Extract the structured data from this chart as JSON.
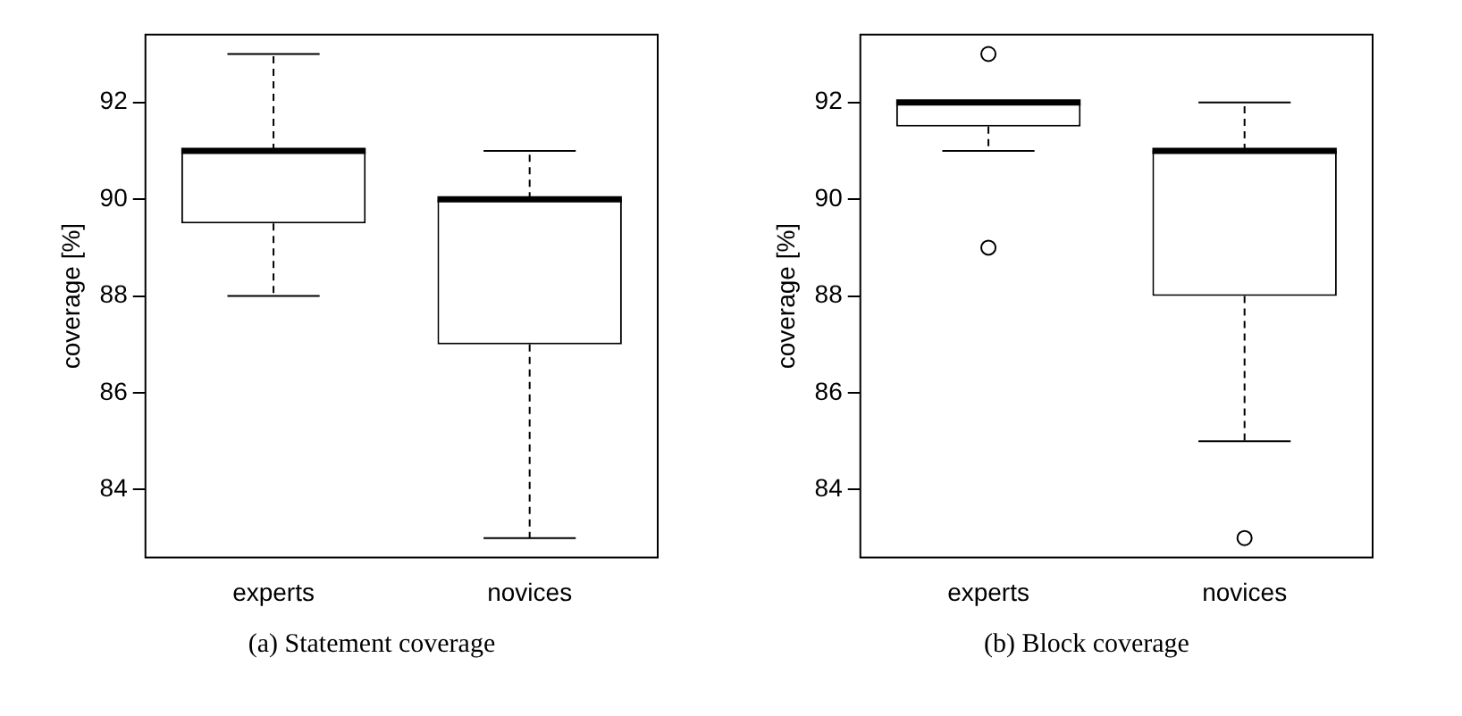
{
  "chart_data": [
    {
      "type": "box",
      "ylabel": "coverage [%]",
      "categories": [
        "experts",
        "novices"
      ],
      "ylim": [
        82.6,
        93.4
      ],
      "yticks": [
        84,
        86,
        88,
        90,
        92
      ],
      "annotations": [
        "(a) Statement coverage"
      ],
      "boxes": [
        {
          "low": 88,
          "q1": 89.5,
          "median": 91,
          "q3": 91,
          "high": 93
        },
        {
          "low": 83,
          "q1": 87,
          "median": 90,
          "q3": 90,
          "high": 91
        }
      ]
    },
    {
      "type": "box",
      "ylabel": "coverage [%]",
      "categories": [
        "experts",
        "novices"
      ],
      "ylim": [
        82.6,
        93.4
      ],
      "yticks": [
        84,
        86,
        88,
        90,
        92
      ],
      "annotations": [
        "(b) Block coverage"
      ],
      "boxes": [
        {
          "low": 91,
          "q1": 91.5,
          "median": 92,
          "q3": 92,
          "high": 92,
          "outliers": [
            93,
            89
          ]
        },
        {
          "low": 85,
          "q1": 88,
          "median": 91,
          "q3": 91,
          "high": 92,
          "outliers": [
            83
          ]
        }
      ]
    }
  ]
}
